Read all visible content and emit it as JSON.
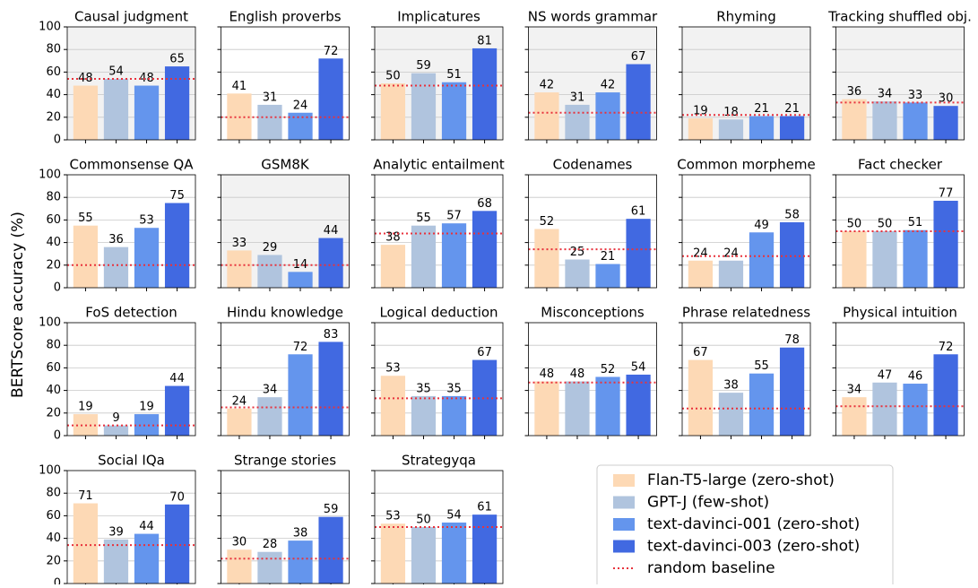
{
  "shared": {
    "ylabel": "BERTScore accuracy (%)",
    "ylim": [
      0,
      100
    ],
    "yticks": [
      0,
      20,
      40,
      60,
      80,
      100
    ],
    "grid": true,
    "series": [
      {
        "name": "Flan-T5-large (zero-shot)",
        "color": "#fdd9b5"
      },
      {
        "name": "GPT-J (few-shot)",
        "color": "#b0c4de"
      },
      {
        "name": "text-davinci-001 (zero-shot)",
        "color": "#6495ed"
      },
      {
        "name": "text-davinci-003 (zero-shot)",
        "color": "#4169e1"
      }
    ],
    "baseline": {
      "name": "random baseline",
      "color": "#e8323c"
    }
  },
  "chart_data": [
    {
      "type": "bar",
      "title": "Causal judgment",
      "values": [
        48,
        54,
        48,
        65
      ],
      "baseline": 54,
      "background": "#f2f2f2"
    },
    {
      "type": "bar",
      "title": "English proverbs",
      "values": [
        41,
        31,
        24,
        72
      ],
      "baseline": 20,
      "background": "#ffffff"
    },
    {
      "type": "bar",
      "title": "Implicatures",
      "values": [
        50,
        59,
        51,
        81
      ],
      "baseline": 48,
      "background": "#f2f2f2"
    },
    {
      "type": "bar",
      "title": "NS words grammar",
      "values": [
        42,
        31,
        42,
        67
      ],
      "baseline": 24,
      "background": "#f2f2f2"
    },
    {
      "type": "bar",
      "title": "Rhyming",
      "values": [
        19,
        18,
        21,
        21
      ],
      "baseline": 22,
      "background": "#f2f2f2"
    },
    {
      "type": "bar",
      "title": "Tracking shuffled obj.",
      "values": [
        36,
        34,
        33,
        30
      ],
      "baseline": 33,
      "background": "#f2f2f2"
    },
    {
      "type": "bar",
      "title": "Commonsense QA",
      "values": [
        55,
        36,
        53,
        75
      ],
      "baseline": 20,
      "background": "#ffffff"
    },
    {
      "type": "bar",
      "title": "GSM8K",
      "values": [
        33,
        29,
        14,
        44
      ],
      "baseline": 20,
      "background": "#f2f2f2"
    },
    {
      "type": "bar",
      "title": "Analytic entailment",
      "values": [
        38,
        55,
        57,
        68
      ],
      "baseline": 48,
      "background": "#ffffff"
    },
    {
      "type": "bar",
      "title": "Codenames",
      "values": [
        52,
        25,
        21,
        61
      ],
      "baseline": 34,
      "background": "#ffffff"
    },
    {
      "type": "bar",
      "title": "Common morpheme",
      "values": [
        24,
        24,
        49,
        58
      ],
      "baseline": 28,
      "background": "#ffffff"
    },
    {
      "type": "bar",
      "title": "Fact checker",
      "values": [
        50,
        50,
        51,
        77
      ],
      "baseline": 50,
      "background": "#ffffff"
    },
    {
      "type": "bar",
      "title": "FoS detection",
      "values": [
        19,
        9,
        19,
        44
      ],
      "baseline": 9,
      "background": "#ffffff"
    },
    {
      "type": "bar",
      "title": "Hindu knowledge",
      "values": [
        24,
        34,
        72,
        83
      ],
      "baseline": 25,
      "background": "#ffffff"
    },
    {
      "type": "bar",
      "title": "Logical deduction",
      "values": [
        53,
        35,
        35,
        67
      ],
      "baseline": 33,
      "background": "#ffffff"
    },
    {
      "type": "bar",
      "title": "Misconceptions",
      "values": [
        48,
        48,
        52,
        54
      ],
      "baseline": 47,
      "background": "#ffffff"
    },
    {
      "type": "bar",
      "title": "Phrase relatedness",
      "values": [
        67,
        38,
        55,
        78
      ],
      "baseline": 24,
      "background": "#ffffff"
    },
    {
      "type": "bar",
      "title": "Physical intuition",
      "values": [
        34,
        47,
        46,
        72
      ],
      "baseline": 26,
      "background": "#ffffff"
    },
    {
      "type": "bar",
      "title": "Social IQa",
      "values": [
        71,
        39,
        44,
        70
      ],
      "baseline": 34,
      "background": "#ffffff"
    },
    {
      "type": "bar",
      "title": "Strange stories",
      "values": [
        30,
        28,
        38,
        59
      ],
      "baseline": 22,
      "background": "#ffffff"
    },
    {
      "type": "bar",
      "title": "Strategyqa",
      "values": [
        53,
        50,
        54,
        61
      ],
      "baseline": 50,
      "background": "#ffffff"
    }
  ]
}
